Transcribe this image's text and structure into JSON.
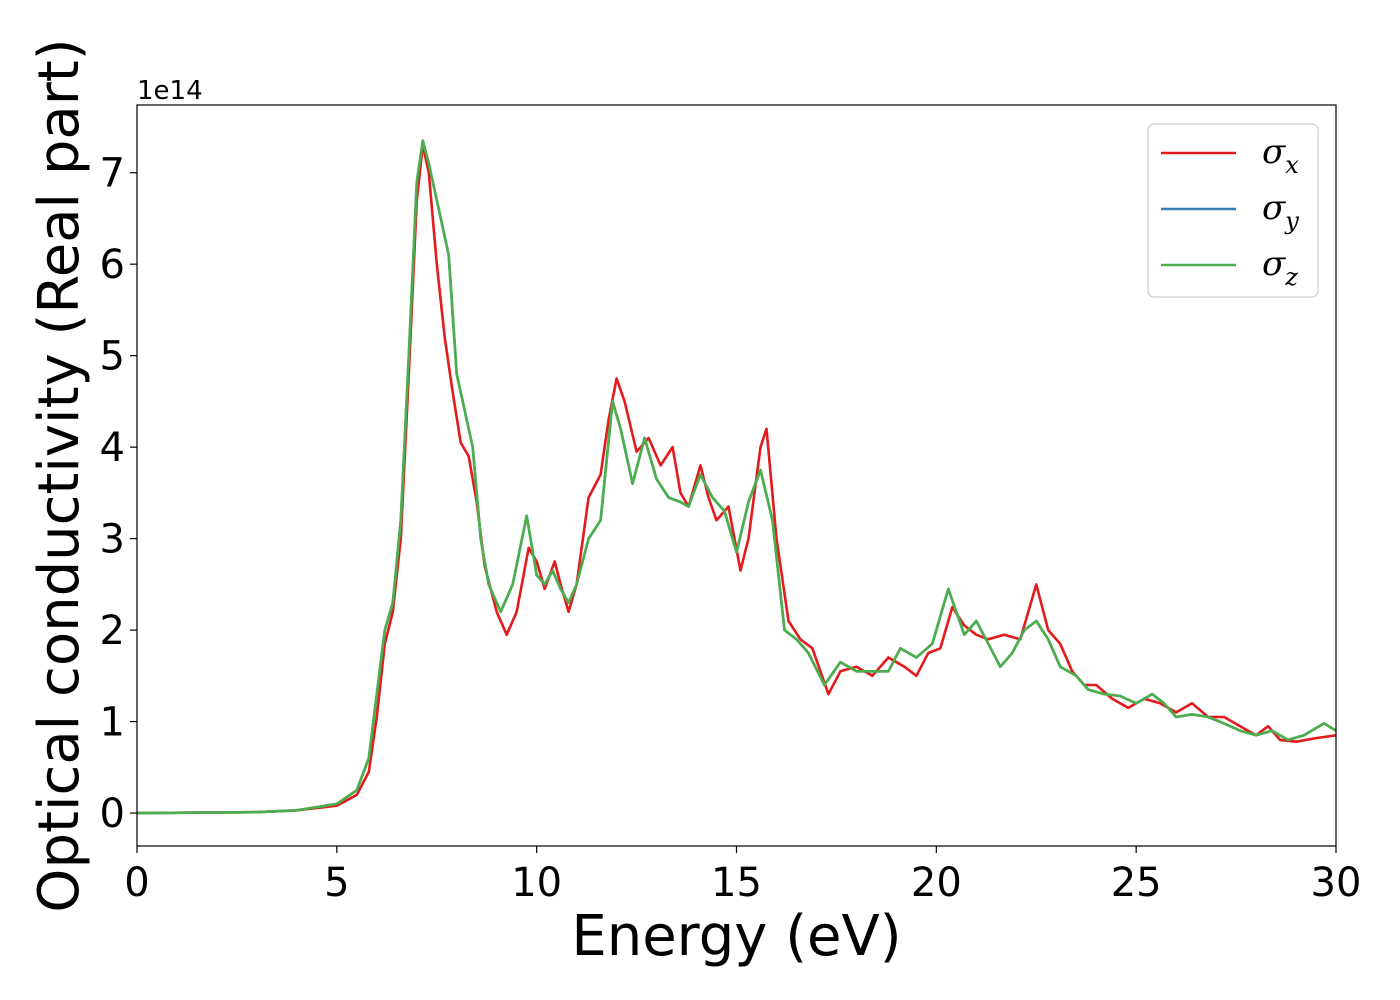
{
  "chart_data": {
    "type": "line",
    "xlabel": "Energy (eV)",
    "ylabel": "Optical conductivity (Real part)",
    "y_offset_text": "1e14",
    "xlim": [
      0,
      30
    ],
    "ylim": [
      -0.36,
      7.74
    ],
    "x_ticks": [
      0,
      5,
      10,
      15,
      20,
      25,
      30
    ],
    "y_ticks": [
      0,
      1,
      2,
      3,
      4,
      5,
      6,
      7
    ],
    "grid": false,
    "legend_position": "top-right",
    "series": [
      {
        "name": "σx",
        "base": "σ",
        "sub": "x",
        "color": "#e41a1c",
        "points": [
          [
            0,
            0
          ],
          [
            3,
            0.01
          ],
          [
            4,
            0.03
          ],
          [
            5,
            0.08
          ],
          [
            5.5,
            0.2
          ],
          [
            5.8,
            0.45
          ],
          [
            6.0,
            1.05
          ],
          [
            6.2,
            1.85
          ],
          [
            6.4,
            2.2
          ],
          [
            6.6,
            3.0
          ],
          [
            6.8,
            4.8
          ],
          [
            7.0,
            6.7
          ],
          [
            7.15,
            7.3
          ],
          [
            7.3,
            7.0
          ],
          [
            7.5,
            6.0
          ],
          [
            7.7,
            5.2
          ],
          [
            7.9,
            4.6
          ],
          [
            8.1,
            4.05
          ],
          [
            8.3,
            3.9
          ],
          [
            8.5,
            3.4
          ],
          [
            8.7,
            2.7
          ],
          [
            9.0,
            2.2
          ],
          [
            9.25,
            1.95
          ],
          [
            9.5,
            2.2
          ],
          [
            9.8,
            2.9
          ],
          [
            10.0,
            2.75
          ],
          [
            10.2,
            2.45
          ],
          [
            10.45,
            2.75
          ],
          [
            10.6,
            2.5
          ],
          [
            10.8,
            2.2
          ],
          [
            11.0,
            2.5
          ],
          [
            11.3,
            3.45
          ],
          [
            11.6,
            3.7
          ],
          [
            11.8,
            4.3
          ],
          [
            12.0,
            4.75
          ],
          [
            12.2,
            4.5
          ],
          [
            12.5,
            3.95
          ],
          [
            12.8,
            4.1
          ],
          [
            13.1,
            3.8
          ],
          [
            13.4,
            4.0
          ],
          [
            13.6,
            3.5
          ],
          [
            13.8,
            3.35
          ],
          [
            14.1,
            3.8
          ],
          [
            14.3,
            3.45
          ],
          [
            14.5,
            3.2
          ],
          [
            14.8,
            3.35
          ],
          [
            15.1,
            2.65
          ],
          [
            15.3,
            3.0
          ],
          [
            15.6,
            4.0
          ],
          [
            15.75,
            4.2
          ],
          [
            16.0,
            3.0
          ],
          [
            16.3,
            2.1
          ],
          [
            16.6,
            1.9
          ],
          [
            16.9,
            1.8
          ],
          [
            17.3,
            1.3
          ],
          [
            17.6,
            1.55
          ],
          [
            18.0,
            1.6
          ],
          [
            18.4,
            1.5
          ],
          [
            18.8,
            1.7
          ],
          [
            19.2,
            1.6
          ],
          [
            19.5,
            1.5
          ],
          [
            19.8,
            1.75
          ],
          [
            20.1,
            1.8
          ],
          [
            20.4,
            2.25
          ],
          [
            20.7,
            2.05
          ],
          [
            21.0,
            1.95
          ],
          [
            21.3,
            1.9
          ],
          [
            21.7,
            1.95
          ],
          [
            22.1,
            1.9
          ],
          [
            22.5,
            2.5
          ],
          [
            22.8,
            2.0
          ],
          [
            23.1,
            1.85
          ],
          [
            23.4,
            1.55
          ],
          [
            23.7,
            1.4
          ],
          [
            24.0,
            1.4
          ],
          [
            24.4,
            1.25
          ],
          [
            24.8,
            1.15
          ],
          [
            25.2,
            1.25
          ],
          [
            25.6,
            1.2
          ],
          [
            26.0,
            1.1
          ],
          [
            26.4,
            1.2
          ],
          [
            26.8,
            1.05
          ],
          [
            27.2,
            1.05
          ],
          [
            27.6,
            0.95
          ],
          [
            28.0,
            0.85
          ],
          [
            28.3,
            0.95
          ],
          [
            28.6,
            0.8
          ],
          [
            29.0,
            0.78
          ],
          [
            29.5,
            0.82
          ],
          [
            30,
            0.85
          ]
        ]
      },
      {
        "name": "σy",
        "base": "σ",
        "sub": "y",
        "color": "#377eb8",
        "points": [
          [
            0,
            0
          ],
          [
            3,
            0.01
          ],
          [
            4,
            0.03
          ],
          [
            5,
            0.1
          ],
          [
            5.5,
            0.25
          ],
          [
            5.8,
            0.6
          ],
          [
            6.0,
            1.3
          ],
          [
            6.2,
            2.0
          ],
          [
            6.4,
            2.3
          ],
          [
            6.6,
            3.2
          ],
          [
            6.8,
            5.0
          ],
          [
            7.0,
            6.9
          ],
          [
            7.15,
            7.35
          ],
          [
            7.3,
            7.1
          ],
          [
            7.5,
            6.7
          ],
          [
            7.8,
            6.1
          ],
          [
            8.0,
            4.8
          ],
          [
            8.2,
            4.4
          ],
          [
            8.4,
            4.0
          ],
          [
            8.6,
            3.0
          ],
          [
            8.8,
            2.5
          ],
          [
            9.1,
            2.2
          ],
          [
            9.4,
            2.5
          ],
          [
            9.75,
            3.25
          ],
          [
            10.0,
            2.6
          ],
          [
            10.2,
            2.5
          ],
          [
            10.4,
            2.65
          ],
          [
            10.6,
            2.45
          ],
          [
            10.8,
            2.3
          ],
          [
            11.0,
            2.5
          ],
          [
            11.3,
            3.0
          ],
          [
            11.6,
            3.2
          ],
          [
            11.9,
            4.5
          ],
          [
            12.1,
            4.2
          ],
          [
            12.4,
            3.6
          ],
          [
            12.7,
            4.1
          ],
          [
            13.0,
            3.65
          ],
          [
            13.3,
            3.45
          ],
          [
            13.6,
            3.4
          ],
          [
            13.8,
            3.35
          ],
          [
            14.1,
            3.7
          ],
          [
            14.4,
            3.45
          ],
          [
            14.7,
            3.3
          ],
          [
            15.0,
            2.85
          ],
          [
            15.3,
            3.4
          ],
          [
            15.6,
            3.75
          ],
          [
            15.9,
            3.2
          ],
          [
            16.2,
            2.0
          ],
          [
            16.5,
            1.9
          ],
          [
            16.8,
            1.75
          ],
          [
            17.2,
            1.4
          ],
          [
            17.6,
            1.65
          ],
          [
            18.0,
            1.55
          ],
          [
            18.5,
            1.55
          ],
          [
            18.8,
            1.55
          ],
          [
            19.1,
            1.8
          ],
          [
            19.5,
            1.7
          ],
          [
            19.9,
            1.85
          ],
          [
            20.3,
            2.45
          ],
          [
            20.7,
            1.95
          ],
          [
            21.0,
            2.1
          ],
          [
            21.3,
            1.85
          ],
          [
            21.6,
            1.6
          ],
          [
            21.9,
            1.75
          ],
          [
            22.2,
            2.0
          ],
          [
            22.5,
            2.1
          ],
          [
            22.8,
            1.9
          ],
          [
            23.1,
            1.6
          ],
          [
            23.5,
            1.5
          ],
          [
            23.8,
            1.35
          ],
          [
            24.2,
            1.3
          ],
          [
            24.6,
            1.28
          ],
          [
            25.0,
            1.2
          ],
          [
            25.4,
            1.3
          ],
          [
            25.7,
            1.2
          ],
          [
            26.0,
            1.05
          ],
          [
            26.4,
            1.08
          ],
          [
            26.8,
            1.05
          ],
          [
            27.2,
            0.98
          ],
          [
            27.6,
            0.9
          ],
          [
            28.0,
            0.85
          ],
          [
            28.4,
            0.9
          ],
          [
            28.8,
            0.8
          ],
          [
            29.2,
            0.85
          ],
          [
            29.7,
            0.98
          ],
          [
            30,
            0.9
          ]
        ]
      },
      {
        "name": "σz",
        "base": "σ",
        "sub": "z",
        "color": "#4daf4a",
        "points": [
          [
            0,
            0
          ],
          [
            3,
            0.01
          ],
          [
            4,
            0.03
          ],
          [
            5,
            0.1
          ],
          [
            5.5,
            0.25
          ],
          [
            5.8,
            0.6
          ],
          [
            6.0,
            1.3
          ],
          [
            6.2,
            2.0
          ],
          [
            6.4,
            2.3
          ],
          [
            6.6,
            3.2
          ],
          [
            6.8,
            5.0
          ],
          [
            7.0,
            6.9
          ],
          [
            7.15,
            7.35
          ],
          [
            7.3,
            7.1
          ],
          [
            7.5,
            6.7
          ],
          [
            7.8,
            6.1
          ],
          [
            8.0,
            4.8
          ],
          [
            8.2,
            4.4
          ],
          [
            8.4,
            4.0
          ],
          [
            8.6,
            3.0
          ],
          [
            8.8,
            2.5
          ],
          [
            9.1,
            2.2
          ],
          [
            9.4,
            2.5
          ],
          [
            9.75,
            3.25
          ],
          [
            10.0,
            2.6
          ],
          [
            10.2,
            2.5
          ],
          [
            10.4,
            2.65
          ],
          [
            10.6,
            2.45
          ],
          [
            10.8,
            2.3
          ],
          [
            11.0,
            2.5
          ],
          [
            11.3,
            3.0
          ],
          [
            11.6,
            3.2
          ],
          [
            11.9,
            4.5
          ],
          [
            12.1,
            4.2
          ],
          [
            12.4,
            3.6
          ],
          [
            12.7,
            4.1
          ],
          [
            13.0,
            3.65
          ],
          [
            13.3,
            3.45
          ],
          [
            13.6,
            3.4
          ],
          [
            13.8,
            3.35
          ],
          [
            14.1,
            3.7
          ],
          [
            14.4,
            3.45
          ],
          [
            14.7,
            3.3
          ],
          [
            15.0,
            2.85
          ],
          [
            15.3,
            3.4
          ],
          [
            15.6,
            3.75
          ],
          [
            15.9,
            3.2
          ],
          [
            16.2,
            2.0
          ],
          [
            16.5,
            1.9
          ],
          [
            16.8,
            1.75
          ],
          [
            17.2,
            1.4
          ],
          [
            17.6,
            1.65
          ],
          [
            18.0,
            1.55
          ],
          [
            18.5,
            1.55
          ],
          [
            18.8,
            1.55
          ],
          [
            19.1,
            1.8
          ],
          [
            19.5,
            1.7
          ],
          [
            19.9,
            1.85
          ],
          [
            20.3,
            2.45
          ],
          [
            20.7,
            1.95
          ],
          [
            21.0,
            2.1
          ],
          [
            21.3,
            1.85
          ],
          [
            21.6,
            1.6
          ],
          [
            21.9,
            1.75
          ],
          [
            22.2,
            2.0
          ],
          [
            22.5,
            2.1
          ],
          [
            22.8,
            1.9
          ],
          [
            23.1,
            1.6
          ],
          [
            23.5,
            1.5
          ],
          [
            23.8,
            1.35
          ],
          [
            24.2,
            1.3
          ],
          [
            24.6,
            1.28
          ],
          [
            25.0,
            1.2
          ],
          [
            25.4,
            1.3
          ],
          [
            25.7,
            1.2
          ],
          [
            26.0,
            1.05
          ],
          [
            26.4,
            1.08
          ],
          [
            26.8,
            1.05
          ],
          [
            27.2,
            0.98
          ],
          [
            27.6,
            0.9
          ],
          [
            28.0,
            0.85
          ],
          [
            28.4,
            0.9
          ],
          [
            28.8,
            0.8
          ],
          [
            29.2,
            0.85
          ],
          [
            29.7,
            0.98
          ],
          [
            30,
            0.9
          ]
        ]
      }
    ]
  }
}
